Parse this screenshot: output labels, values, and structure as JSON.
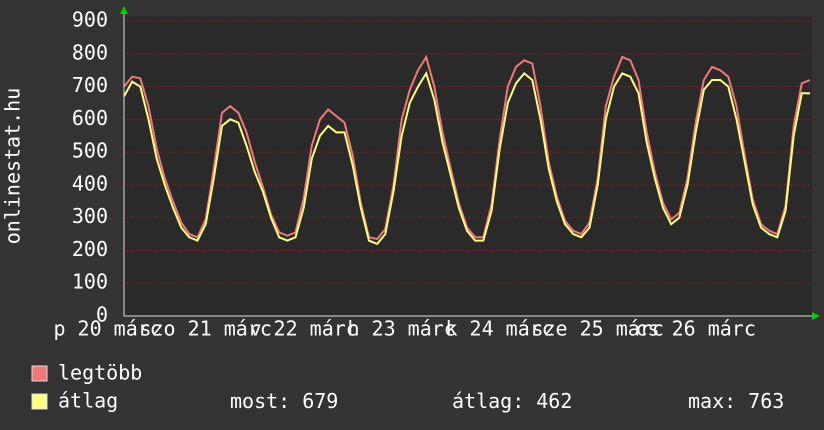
{
  "chart_data": {
    "type": "line",
    "ylabel": "onlinestat.hu",
    "x": [
      16,
      18,
      20,
      22,
      24,
      26,
      28,
      30,
      32,
      34,
      36,
      38,
      40,
      42,
      44,
      46,
      48,
      50,
      52,
      54,
      56,
      58,
      60,
      62,
      64,
      66,
      68,
      70,
      72,
      74,
      76,
      78,
      80,
      82,
      84,
      86,
      88,
      90,
      92,
      94,
      96,
      98,
      100,
      102,
      104,
      106,
      108,
      110,
      112,
      114,
      116,
      118,
      120,
      122,
      124,
      126,
      128,
      130,
      132,
      134,
      136,
      138,
      140,
      142,
      144,
      146,
      148,
      150,
      152,
      154,
      156,
      158,
      160,
      162,
      164,
      166,
      168,
      170,
      172,
      174,
      176,
      178,
      180,
      182,
      184
    ],
    "xlim": [
      16,
      184
    ],
    "xticks": [
      {
        "value": 12,
        "label": "p 20 márc"
      },
      {
        "value": 36,
        "label": "szo 21 márc"
      },
      {
        "value": 60,
        "label": "v 22 márc"
      },
      {
        "value": 84,
        "label": "h 23 márc"
      },
      {
        "value": 108,
        "label": "k 24 márc"
      },
      {
        "value": 132,
        "label": "sze 25 márc"
      },
      {
        "value": 156,
        "label": "cs 26 márc"
      }
    ],
    "ylim": [
      0,
      900
    ],
    "yticks": [
      0,
      100,
      200,
      300,
      400,
      500,
      600,
      700,
      800,
      900
    ],
    "grid": true,
    "series": [
      {
        "name": "legtöbb",
        "color": "#f07878",
        "values": [
          700,
          730,
          725,
          640,
          510,
          420,
          350,
          285,
          250,
          240,
          295,
          450,
          620,
          640,
          620,
          560,
          470,
          395,
          310,
          255,
          245,
          255,
          360,
          520,
          600,
          630,
          610,
          590,
          490,
          345,
          240,
          235,
          265,
          400,
          600,
          690,
          750,
          790,
          700,
          560,
          450,
          345,
          270,
          240,
          240,
          340,
          540,
          700,
          760,
          780,
          770,
          640,
          470,
          365,
          290,
          260,
          250,
          285,
          420,
          640,
          730,
          790,
          780,
          720,
          560,
          440,
          345,
          295,
          315,
          420,
          590,
          720,
          760,
          750,
          730,
          640,
          490,
          355,
          280,
          260,
          250,
          335,
          580,
          710,
          720
        ]
      },
      {
        "name": "átlag",
        "color": "#ffff80",
        "values": [
          670,
          715,
          700,
          600,
          480,
          400,
          330,
          270,
          240,
          230,
          280,
          420,
          580,
          600,
          590,
          520,
          440,
          380,
          300,
          240,
          230,
          240,
          330,
          480,
          550,
          580,
          560,
          560,
          460,
          330,
          230,
          220,
          250,
          380,
          550,
          650,
          700,
          740,
          660,
          530,
          430,
          330,
          260,
          230,
          230,
          320,
          510,
          650,
          710,
          740,
          720,
          600,
          450,
          350,
          280,
          250,
          240,
          270,
          400,
          600,
          700,
          740,
          730,
          680,
          530,
          420,
          330,
          280,
          300,
          400,
          560,
          690,
          720,
          720,
          700,
          600,
          470,
          340,
          270,
          250,
          240,
          320,
          550,
          680,
          679
        ]
      }
    ],
    "stats": [
      {
        "label": "most:",
        "value": 679
      },
      {
        "label": "átlag:",
        "value": 462
      },
      {
        "label": "max:",
        "value": 763
      }
    ]
  }
}
